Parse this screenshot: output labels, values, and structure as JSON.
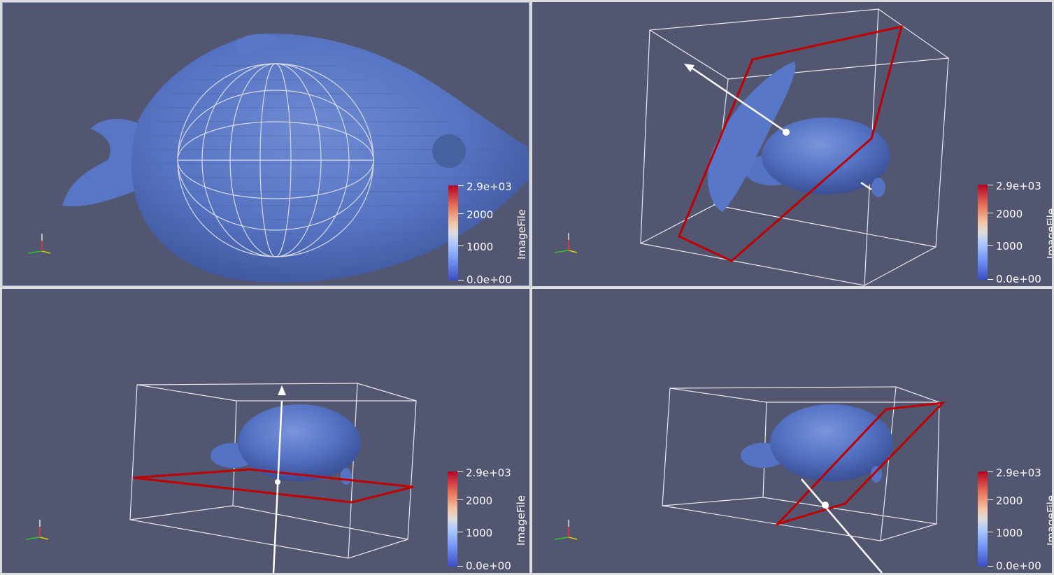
{
  "views": [
    {
      "id": "top-left",
      "content": "fish-isosurface-with-sphere-widget"
    },
    {
      "id": "top-right",
      "content": "organ-isosurface-with-oblique-plane-widget"
    },
    {
      "id": "bottom-left",
      "content": "organ-isosurface-with-horizontal-plane-widget"
    },
    {
      "id": "bottom-right",
      "content": "organ-isosurface-with-tilted-plane-widget"
    }
  ],
  "colorbar": {
    "title": "ImageFile",
    "labels": [
      "2.9e+03",
      "2000",
      "1000",
      "0.0e+00"
    ],
    "colormap": "cool-to-warm"
  },
  "axes": {
    "x": "x",
    "y": "y",
    "z": "z"
  },
  "colors": {
    "background": "#525670",
    "surface": "#4f6bb8",
    "plane_outline": "#c00000",
    "widget": "#ffffff"
  }
}
